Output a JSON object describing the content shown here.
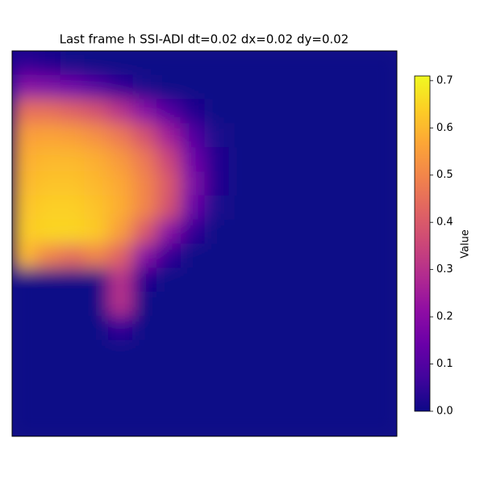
{
  "chart_data": {
    "type": "heatmap",
    "title": "Last frame h SSI-ADI dt=0.02 dx=0.02 dy=0.02",
    "colormap": "plasma",
    "z": [
      [
        0.05,
        0.03,
        0.01,
        0,
        0,
        0,
        0,
        0,
        0,
        0,
        0,
        0,
        0,
        0,
        0,
        0
      ],
      [
        0.2,
        0.18,
        0.15,
        0.1,
        0.05,
        0.02,
        0,
        0,
        0,
        0,
        0,
        0,
        0,
        0,
        0,
        0
      ],
      [
        0.45,
        0.45,
        0.42,
        0.38,
        0.3,
        0.2,
        0.1,
        0.03,
        0,
        0,
        0,
        0,
        0,
        0,
        0,
        0
      ],
      [
        0.55,
        0.56,
        0.55,
        0.52,
        0.47,
        0.38,
        0.25,
        0.1,
        0.02,
        0,
        0,
        0,
        0,
        0,
        0,
        0
      ],
      [
        0.58,
        0.6,
        0.6,
        0.58,
        0.54,
        0.47,
        0.35,
        0.15,
        0.03,
        0,
        0,
        0,
        0,
        0,
        0,
        0
      ],
      [
        0.6,
        0.62,
        0.62,
        0.6,
        0.57,
        0.5,
        0.4,
        0.18,
        0.03,
        0,
        0,
        0,
        0,
        0,
        0,
        0
      ],
      [
        0.62,
        0.64,
        0.64,
        0.62,
        0.58,
        0.5,
        0.38,
        0.14,
        0.02,
        0,
        0,
        0,
        0,
        0,
        0,
        0
      ],
      [
        0.63,
        0.65,
        0.65,
        0.63,
        0.55,
        0.4,
        0.2,
        0.05,
        0,
        0,
        0,
        0,
        0,
        0,
        0,
        0
      ],
      [
        0.6,
        0.5,
        0.45,
        0.5,
        0.42,
        0.2,
        0.05,
        0,
        0,
        0,
        0,
        0,
        0,
        0,
        0,
        0
      ],
      [
        0,
        0,
        0,
        0,
        0.3,
        0.03,
        0,
        0,
        0,
        0,
        0,
        0,
        0,
        0,
        0,
        0
      ],
      [
        0,
        0,
        0,
        0,
        0.3,
        0,
        0,
        0,
        0,
        0,
        0,
        0,
        0,
        0,
        0,
        0
      ],
      [
        0,
        0,
        0,
        0,
        0.05,
        0,
        0,
        0,
        0,
        0,
        0,
        0,
        0,
        0,
        0,
        0
      ],
      [
        0,
        0,
        0,
        0,
        0,
        0,
        0,
        0,
        0,
        0,
        0,
        0,
        0,
        0,
        0,
        0
      ],
      [
        0,
        0,
        0,
        0,
        0,
        0,
        0,
        0,
        0,
        0,
        0,
        0,
        0,
        0,
        0,
        0
      ],
      [
        0,
        0,
        0,
        0,
        0,
        0,
        0,
        0,
        0,
        0,
        0,
        0,
        0,
        0,
        0,
        0
      ],
      [
        0,
        0,
        0,
        0,
        0,
        0,
        0,
        0,
        0,
        0,
        0,
        0,
        0,
        0,
        0,
        0
      ]
    ],
    "colorbar": {
      "label": "Value",
      "lim": [
        0,
        0.71
      ],
      "ticks": [
        {
          "value": 0,
          "label": "0.0"
        },
        0.1,
        0.2,
        0.3,
        0.4,
        0.5,
        0.6,
        0.7
      ]
    }
  }
}
